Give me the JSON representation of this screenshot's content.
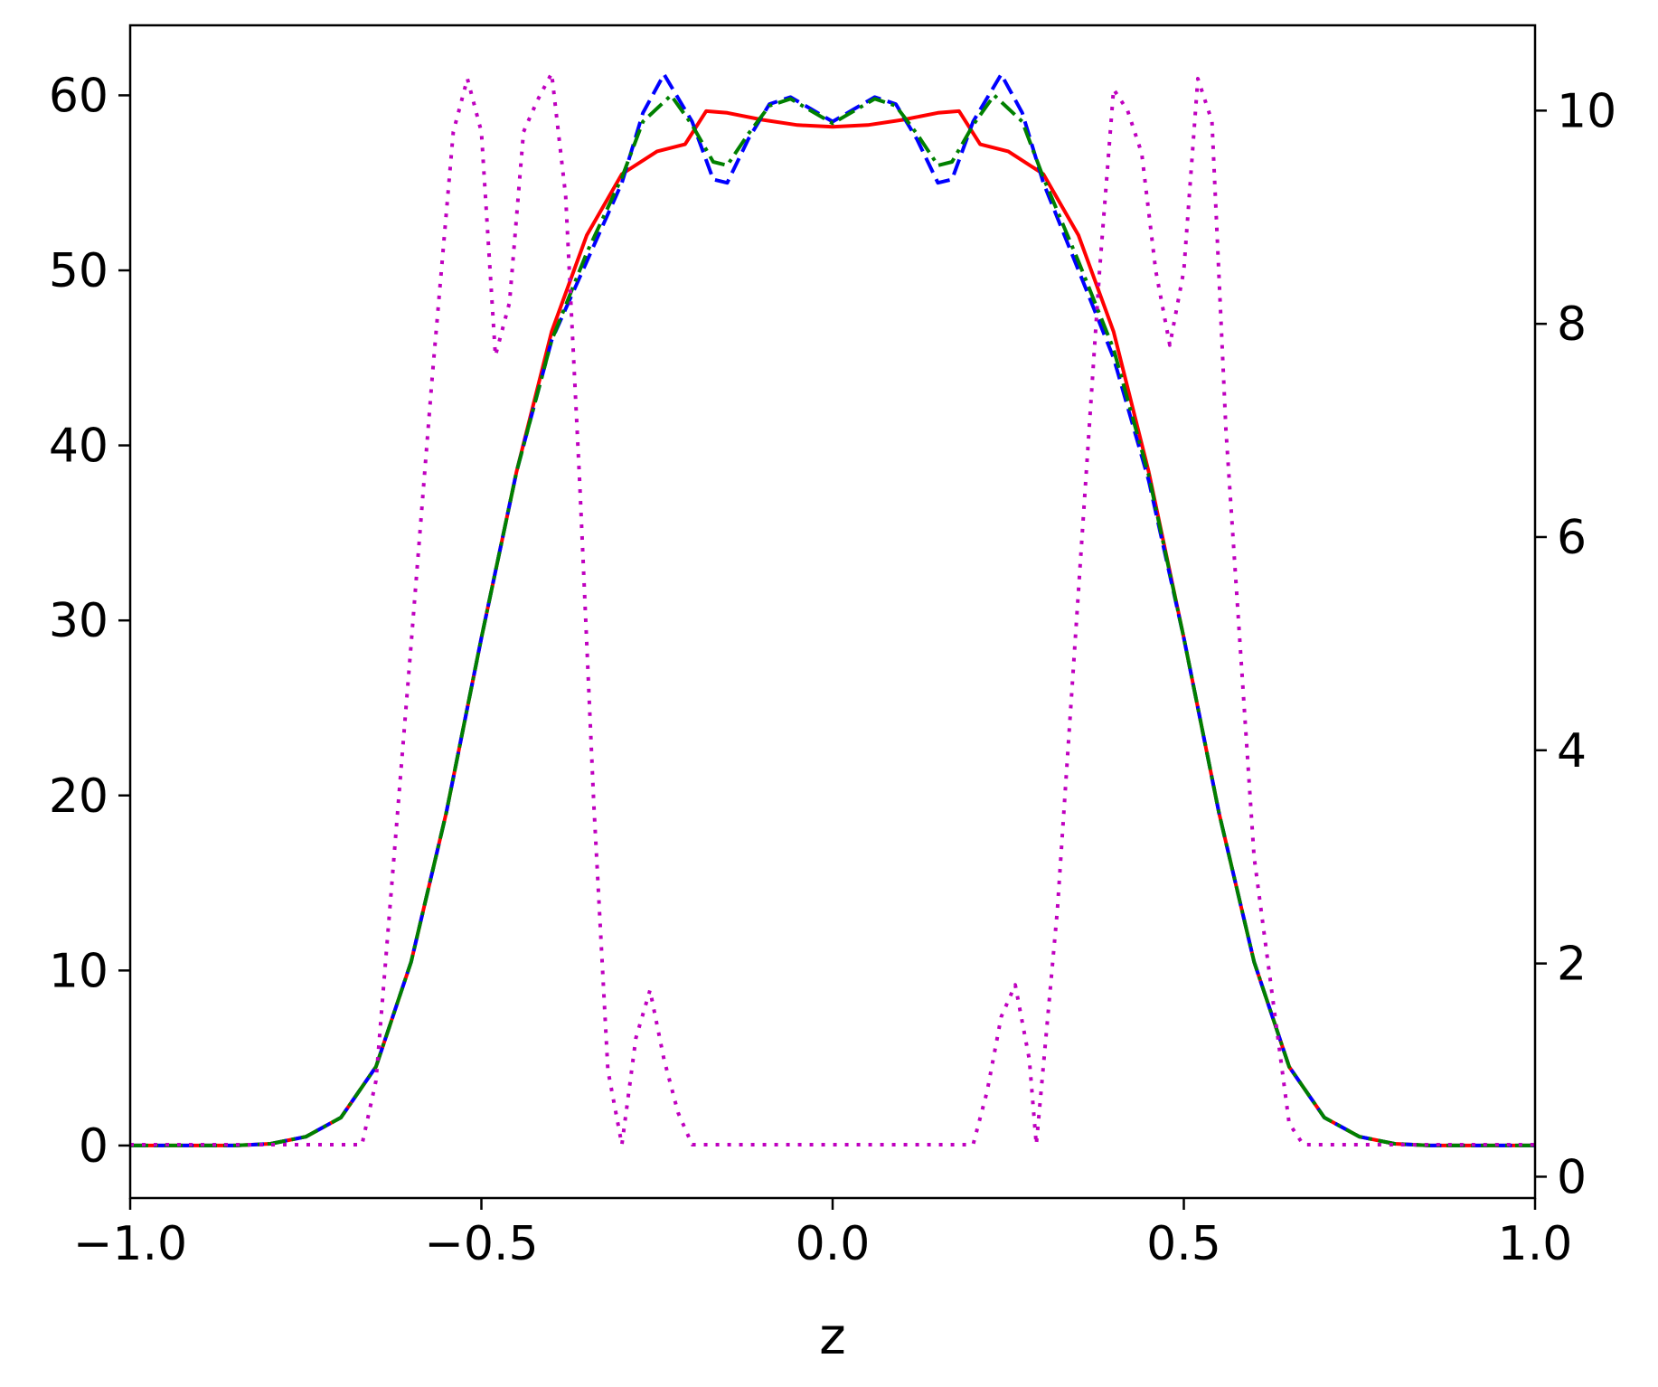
{
  "chart_data": {
    "type": "line",
    "xlabel": "z",
    "ylabel": "",
    "y2label": "",
    "xlim": [
      -1.0,
      1.0
    ],
    "ylim": [
      -3.0,
      64.0
    ],
    "y2lim": [
      -0.2,
      10.8
    ],
    "grid": false,
    "legend": "none",
    "xticks": [
      "−1.0",
      "−0.5",
      "0.0",
      "0.5",
      "1.0"
    ],
    "xtick_values": [
      -1.0,
      -0.5,
      0.0,
      0.5,
      1.0
    ],
    "yticks": [
      "0",
      "10",
      "20",
      "30",
      "40",
      "50",
      "60"
    ],
    "ytick_values": [
      0,
      10,
      20,
      30,
      40,
      50,
      60
    ],
    "y2ticks": [
      "0",
      "2",
      "4",
      "6",
      "8",
      "10"
    ],
    "y2tick_values": [
      0,
      2,
      4,
      6,
      8,
      10
    ],
    "series": [
      {
        "axis": "left",
        "color": "#ff0000",
        "style": "solid",
        "x": [
          -1.0,
          -0.85,
          -0.8,
          -0.75,
          -0.7,
          -0.65,
          -0.6,
          -0.55,
          -0.5,
          -0.45,
          -0.4,
          -0.35,
          -0.3,
          -0.25,
          -0.21,
          -0.18,
          -0.15,
          -0.1,
          -0.05,
          0.0,
          0.05,
          0.1,
          0.15,
          0.18,
          0.21,
          0.25,
          0.3,
          0.35,
          0.4,
          0.45,
          0.5,
          0.55,
          0.6,
          0.65,
          0.7,
          0.75,
          0.8,
          0.85,
          1.0
        ],
        "y": [
          0,
          0,
          0.1,
          0.5,
          1.6,
          4.5,
          10.5,
          19,
          29,
          38.5,
          46.5,
          52,
          55.5,
          56.8,
          57.2,
          59.1,
          59.0,
          58.6,
          58.3,
          58.2,
          58.3,
          58.6,
          59.0,
          59.1,
          57.2,
          56.8,
          55.5,
          52,
          46.5,
          38.5,
          29,
          19,
          10.5,
          4.5,
          1.6,
          0.5,
          0.1,
          0,
          0
        ]
      },
      {
        "axis": "left",
        "color": "#0000ff",
        "style": "dashed",
        "x": [
          -1.0,
          -0.85,
          -0.8,
          -0.75,
          -0.7,
          -0.65,
          -0.6,
          -0.55,
          -0.5,
          -0.45,
          -0.4,
          -0.35,
          -0.3,
          -0.27,
          -0.24,
          -0.2,
          -0.17,
          -0.15,
          -0.12,
          -0.09,
          -0.06,
          -0.03,
          0.0,
          0.03,
          0.06,
          0.09,
          0.12,
          0.15,
          0.17,
          0.2,
          0.24,
          0.27,
          0.3,
          0.35,
          0.4,
          0.45,
          0.5,
          0.55,
          0.6,
          0.65,
          0.7,
          0.75,
          0.8,
          0.85,
          1.0
        ],
        "y": [
          0,
          0,
          0.1,
          0.5,
          1.6,
          4.5,
          10.5,
          19,
          29,
          38.5,
          46,
          50.5,
          55,
          59,
          61.2,
          58.5,
          55.2,
          55,
          57.5,
          59.5,
          59.9,
          59.2,
          58.5,
          59.2,
          59.9,
          59.5,
          57.5,
          55,
          55.2,
          58.5,
          61.2,
          59,
          55,
          50,
          45,
          38,
          29,
          19,
          10.5,
          4.5,
          1.6,
          0.5,
          0.1,
          0,
          0
        ]
      },
      {
        "axis": "left",
        "color": "#008000",
        "style": "dashdot",
        "x": [
          -1.0,
          -0.85,
          -0.8,
          -0.75,
          -0.7,
          -0.65,
          -0.6,
          -0.55,
          -0.5,
          -0.45,
          -0.4,
          -0.35,
          -0.3,
          -0.27,
          -0.23,
          -0.2,
          -0.17,
          -0.15,
          -0.12,
          -0.09,
          -0.06,
          -0.03,
          0.0,
          0.03,
          0.06,
          0.09,
          0.12,
          0.15,
          0.17,
          0.2,
          0.23,
          0.27,
          0.3,
          0.35,
          0.4,
          0.45,
          0.5,
          0.55,
          0.6,
          0.65,
          0.7,
          0.75,
          0.8,
          0.85,
          1.0
        ],
        "y": [
          0,
          0,
          0.1,
          0.5,
          1.6,
          4.5,
          10.5,
          19,
          29,
          38.5,
          46,
          51,
          55.3,
          58.5,
          60,
          58.3,
          56.2,
          56,
          57.8,
          59.4,
          59.8,
          59.1,
          58.4,
          59.1,
          59.8,
          59.4,
          57.8,
          56,
          56.2,
          58.3,
          60,
          58.5,
          55.3,
          50.5,
          45.5,
          38.3,
          29,
          19,
          10.5,
          4.5,
          1.6,
          0.5,
          0.1,
          0,
          0
        ]
      },
      {
        "axis": "right",
        "color": "#bf00bf",
        "style": "dotted",
        "x": [
          -1.0,
          -0.67,
          -0.65,
          -0.6,
          -0.57,
          -0.54,
          -0.52,
          -0.5,
          -0.48,
          -0.46,
          -0.44,
          -0.42,
          -0.4,
          -0.38,
          -0.36,
          -0.34,
          -0.32,
          -0.3,
          -0.28,
          -0.26,
          -0.24,
          -0.22,
          -0.2,
          0.2,
          0.22,
          0.24,
          0.26,
          0.28,
          0.29,
          0.32,
          0.35,
          0.38,
          0.4,
          0.42,
          0.44,
          0.46,
          0.48,
          0.5,
          0.52,
          0.54,
          0.56,
          0.6,
          0.65,
          0.67,
          1.0
        ],
        "y": [
          0.3,
          0.3,
          0.9,
          5.0,
          7.5,
          9.8,
          10.3,
          9.8,
          7.7,
          8.2,
          9.8,
          10.1,
          10.35,
          9.2,
          6.5,
          3.5,
          1.0,
          0.3,
          1.3,
          1.75,
          1.1,
          0.6,
          0.3,
          0.3,
          0.8,
          1.5,
          1.8,
          1.1,
          0.3,
          2.5,
          5.5,
          8.5,
          10.2,
          10.0,
          9.6,
          8.5,
          7.8,
          8.5,
          10.3,
          9.9,
          7.0,
          3.0,
          0.5,
          0.3,
          0.3
        ]
      }
    ]
  }
}
